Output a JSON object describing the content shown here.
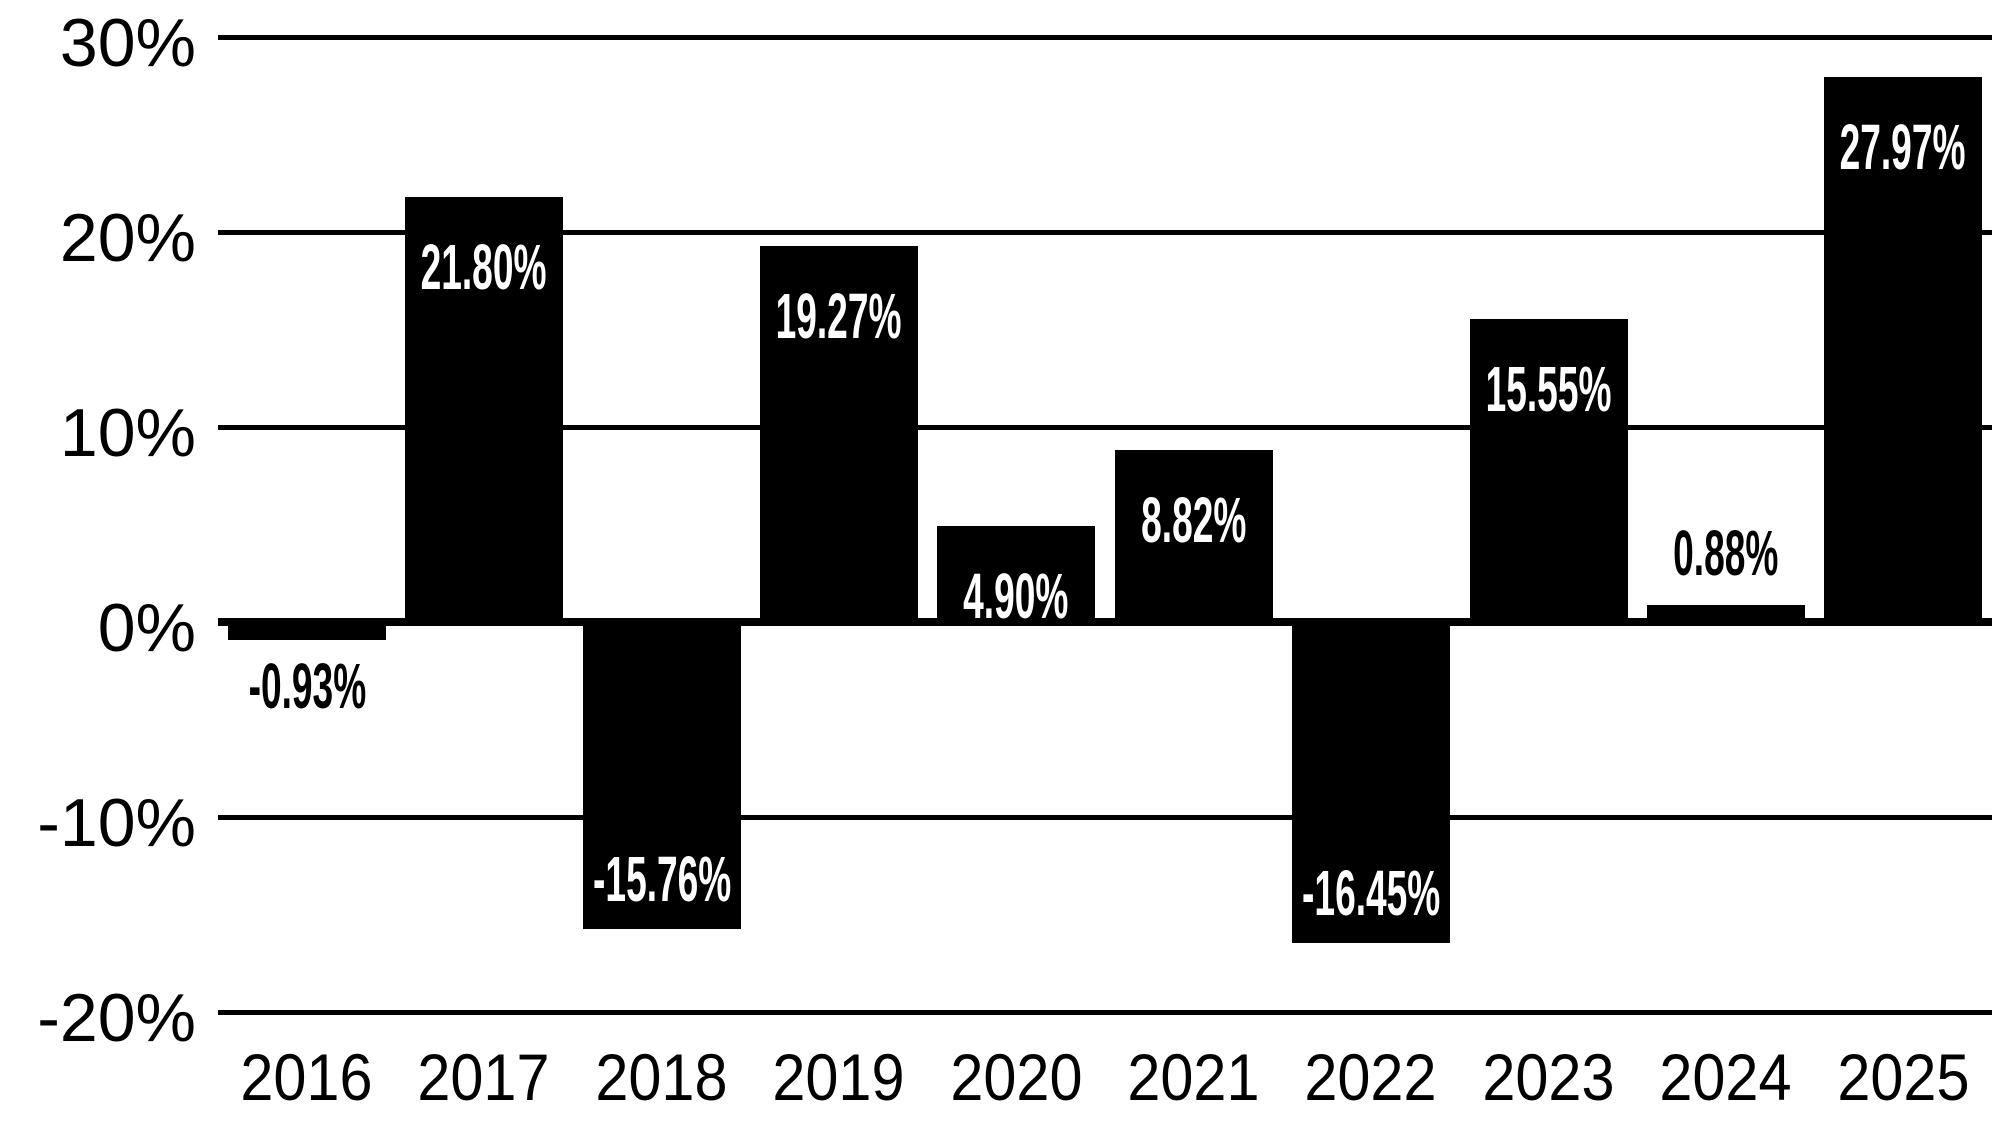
{
  "chart_data": {
    "type": "bar",
    "title": "",
    "xlabel": "",
    "ylabel": "",
    "categories": [
      "2016",
      "2017",
      "2018",
      "2019",
      "2020",
      "2021",
      "2022",
      "2023",
      "2024",
      "2025"
    ],
    "values": [
      -0.93,
      21.8,
      -15.76,
      19.27,
      4.9,
      8.82,
      -16.45,
      15.55,
      0.88,
      27.97
    ],
    "value_labels": [
      "-0.93%",
      "21.80%",
      "-15.76%",
      "19.27%",
      "4.90%",
      "8.82%",
      "-16.45%",
      "15.55%",
      "0.88%",
      "27.97%"
    ],
    "y_ticks": [
      "30%",
      "20%",
      "10%",
      "0%",
      "-10%",
      "-20%"
    ],
    "y_tick_values": [
      30,
      20,
      10,
      0,
      -10,
      -20
    ],
    "ylim": [
      -20,
      30
    ],
    "grid": true,
    "legend": "none",
    "bar_color": "#000000",
    "label_color_inside": "#ffffff",
    "label_color_outside": "#000000",
    "axis_color": "#000000",
    "background_color": "#ffffff"
  }
}
